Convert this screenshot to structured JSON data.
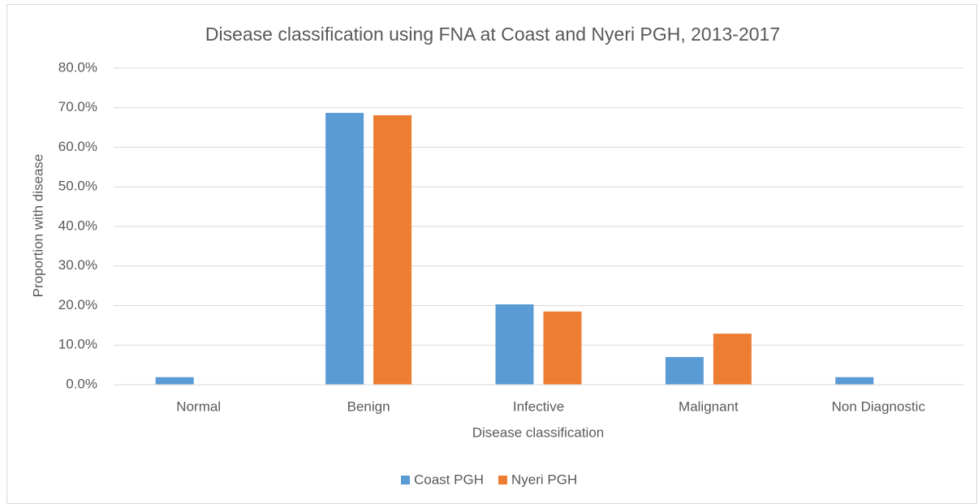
{
  "chart_data": {
    "type": "bar",
    "title": "Disease classification using FNA at Coast and Nyeri PGH, 2013-2017",
    "x_label": "Disease classification",
    "y_label": "Proportion with disease",
    "categories": [
      "Normal",
      "Benign",
      "Infective",
      "Malignant",
      "Non Diagnostic"
    ],
    "series": [
      {
        "name": "Coast PGH",
        "color": "#5b9bd5",
        "values": [
          1.9,
          68.7,
          20.3,
          7.0,
          1.9
        ]
      },
      {
        "name": "Nyeri PGH",
        "color": "#ed7d31",
        "values": [
          0,
          68.1,
          18.5,
          12.9,
          0
        ]
      }
    ],
    "ylim": [
      0,
      80
    ],
    "yticks": [
      {
        "value": 0,
        "label": "0.0%"
      },
      {
        "value": 10,
        "label": "10.0%"
      },
      {
        "value": 20,
        "label": "20.0%"
      },
      {
        "value": 30,
        "label": "30.0%"
      },
      {
        "value": 40,
        "label": "40.0%"
      },
      {
        "value": 50,
        "label": "50.0%"
      },
      {
        "value": 60,
        "label": "60.0%"
      },
      {
        "value": 70,
        "label": "70.0%"
      },
      {
        "value": 80,
        "label": "80.0%"
      }
    ],
    "grid": true,
    "legend": "bottom"
  }
}
